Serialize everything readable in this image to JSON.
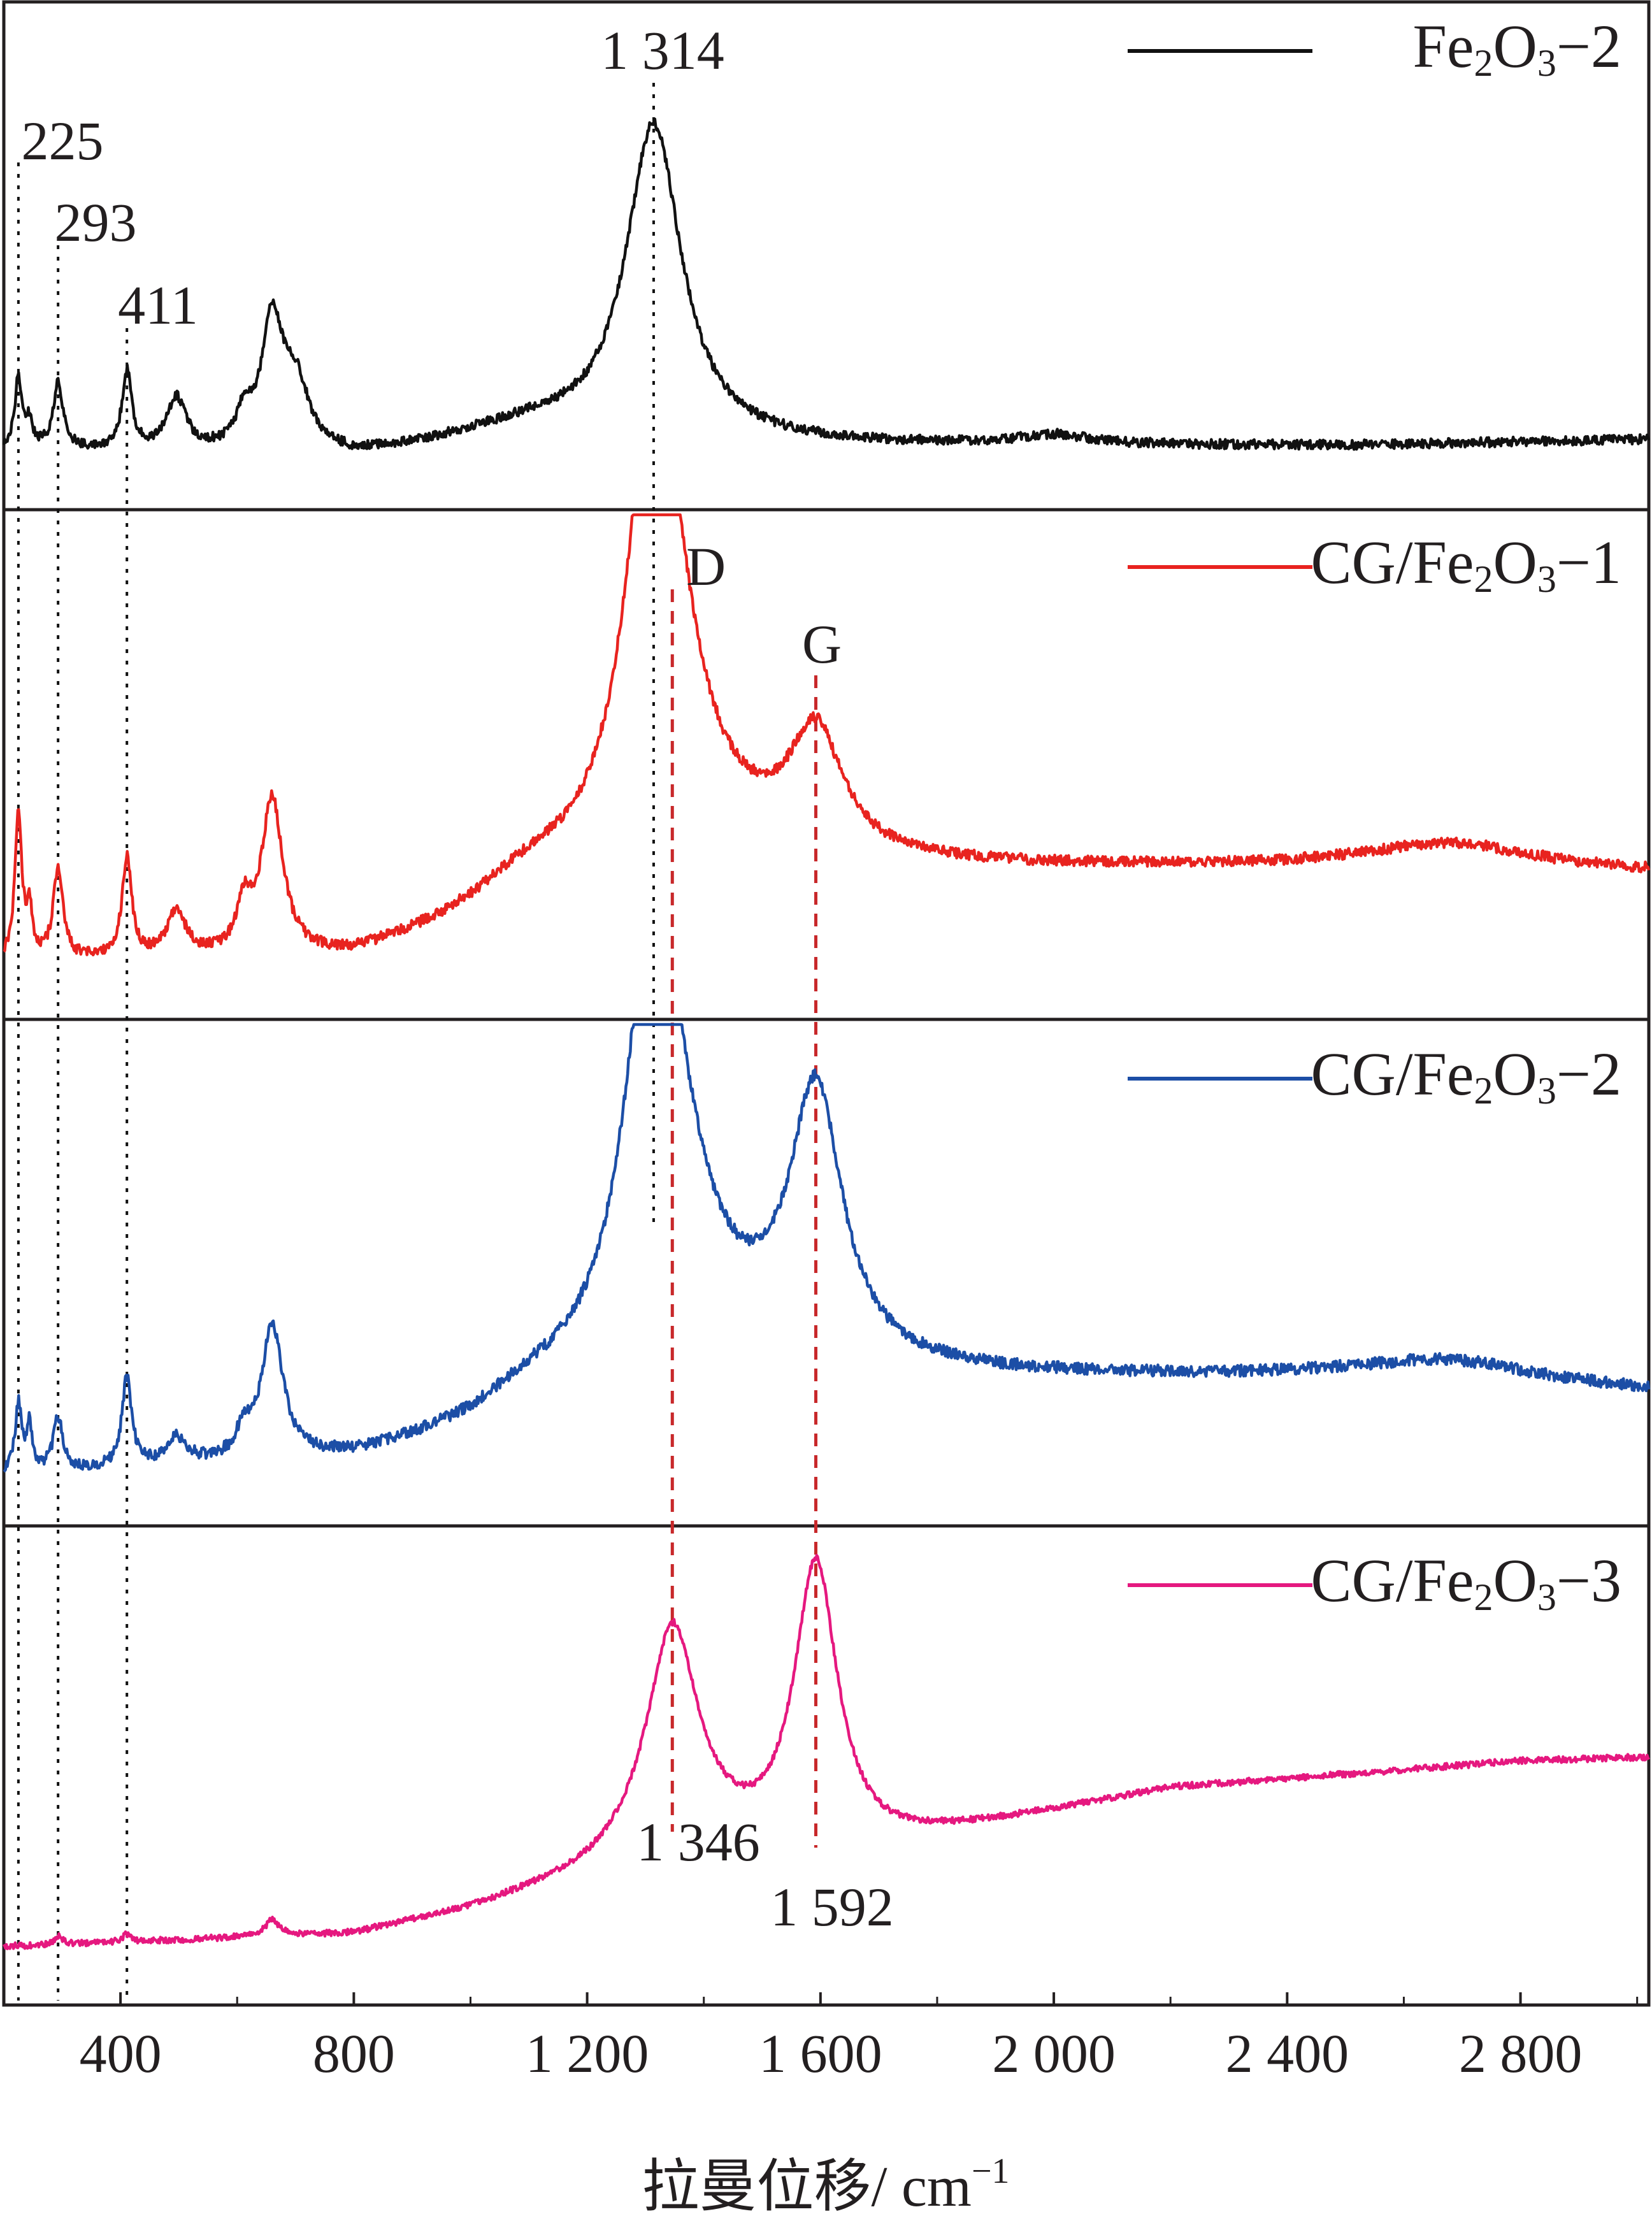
{
  "chart_data": {
    "type": "line",
    "xlabel": "拉曼位移/ cm",
    "xlabel_sup": "−1",
    "xlim": [
      200,
      3020
    ],
    "x_ticks": [
      400,
      800,
      1200,
      1600,
      2000,
      2400,
      2800
    ],
    "x_tick_labels": [
      "400",
      "800",
      "1 200",
      "1 600",
      "2 000",
      "2 400",
      "2 800"
    ],
    "ylabel": "",
    "y_axis": "stacked panels, no y ticks",
    "colors": {
      "Fe2O3-2": "#111111",
      "CG/Fe2O3-1": "#e8231f",
      "CG/Fe2O3-2": "#1c4ea6",
      "CG/Fe2O3-3": "#e5187f",
      "iron_oxide_markers": "#111111",
      "carbon_markers": "#c8282a"
    },
    "panels": [
      {
        "id": "Fe2O3-2",
        "legend": {
          "prefix": "Fe",
          "sub1": "2",
          "mid": "O",
          "sub2": "3",
          "suffix": "−2"
        },
        "peaks": [
          [
            225,
            0.22
          ],
          [
            244,
            0.08
          ],
          [
            293,
            0.2
          ],
          [
            411,
            0.24
          ],
          [
            496,
            0.16
          ],
          [
            612,
            0.1
          ],
          [
            660,
            0.4
          ],
          [
            700,
            0.2
          ],
          [
            1110,
            0.05
          ],
          [
            1314,
            1.0
          ],
          [
            2000,
            0.03
          ]
        ],
        "widths": [
          [
            225,
            7
          ],
          [
            244,
            6
          ],
          [
            293,
            10
          ],
          [
            411,
            10
          ],
          [
            496,
            20
          ],
          [
            612,
            15
          ],
          [
            660,
            22
          ],
          [
            700,
            28
          ],
          [
            1110,
            120
          ],
          [
            1314,
            58
          ],
          [
            2000,
            70
          ]
        ],
        "baseline": [
          [
            200,
            0.05
          ],
          [
            800,
            0.02
          ],
          [
            1000,
            0.06
          ],
          [
            1500,
            0.06
          ],
          [
            2500,
            0.06
          ],
          [
            3020,
            0.08
          ]
        ],
        "noise": 0.015
      },
      {
        "id": "CG/Fe2O3-1",
        "legend": {
          "prefix": "CG/Fe",
          "sub1": "2",
          "mid": "O",
          "sub2": "3",
          "suffix": "−1"
        },
        "peaks": [
          [
            225,
            0.33
          ],
          [
            244,
            0.1
          ],
          [
            293,
            0.2
          ],
          [
            411,
            0.22
          ],
          [
            496,
            0.1
          ],
          [
            612,
            0.1
          ],
          [
            660,
            0.35
          ],
          [
            1100,
            0.08
          ],
          [
            1314,
            0.95
          ],
          [
            1346,
            0.25
          ],
          [
            1592,
            0.27
          ],
          [
            2680,
            0.06
          ]
        ],
        "widths": [
          [
            225,
            7
          ],
          [
            244,
            6
          ],
          [
            293,
            10
          ],
          [
            411,
            10
          ],
          [
            496,
            20
          ],
          [
            612,
            15
          ],
          [
            660,
            22
          ],
          [
            1100,
            130
          ],
          [
            1314,
            55
          ],
          [
            1346,
            90
          ],
          [
            1592,
            55
          ],
          [
            2680,
            180
          ]
        ],
        "baseline": [
          [
            200,
            0.04
          ],
          [
            800,
            0.04
          ],
          [
            1000,
            0.1
          ],
          [
            1500,
            0.25
          ],
          [
            1700,
            0.25
          ],
          [
            2500,
            0.25
          ],
          [
            3020,
            0.24
          ]
        ],
        "noise": 0.012
      },
      {
        "id": "CG/Fe2O3-2",
        "legend": {
          "prefix": "CG/Fe",
          "sub1": "2",
          "mid": "O",
          "sub2": "3",
          "suffix": "−2"
        },
        "peaks": [
          [
            225,
            0.15
          ],
          [
            244,
            0.1
          ],
          [
            293,
            0.12
          ],
          [
            411,
            0.2
          ],
          [
            496,
            0.06
          ],
          [
            612,
            0.06
          ],
          [
            660,
            0.3
          ],
          [
            1100,
            0.06
          ],
          [
            1314,
            0.88
          ],
          [
            1346,
            0.3
          ],
          [
            1592,
            0.6
          ],
          [
            2680,
            0.05
          ]
        ],
        "widths": [
          [
            225,
            7
          ],
          [
            244,
            6
          ],
          [
            293,
            10
          ],
          [
            411,
            10
          ],
          [
            496,
            20
          ],
          [
            612,
            15
          ],
          [
            660,
            22
          ],
          [
            1100,
            130
          ],
          [
            1314,
            55
          ],
          [
            1346,
            100
          ],
          [
            1592,
            55
          ],
          [
            2680,
            180
          ]
        ],
        "baseline": [
          [
            200,
            0.03
          ],
          [
            800,
            0.06
          ],
          [
            1000,
            0.1
          ],
          [
            1500,
            0.25
          ],
          [
            1700,
            0.25
          ],
          [
            2500,
            0.25
          ],
          [
            3020,
            0.22
          ]
        ],
        "noise": 0.013
      },
      {
        "id": "CG/Fe2O3-3",
        "legend": {
          "prefix": "CG/Fe",
          "sub1": "2",
          "mid": "O",
          "sub2": "3",
          "suffix": "−3"
        },
        "peaks": [
          [
            293,
            0.02
          ],
          [
            411,
            0.02
          ],
          [
            660,
            0.04
          ],
          [
            1346,
            0.55
          ],
          [
            1592,
            0.72
          ]
        ],
        "widths": [
          [
            293,
            8
          ],
          [
            411,
            8
          ],
          [
            660,
            15
          ],
          [
            1346,
            55
          ],
          [
            1592,
            45
          ]
        ],
        "baseline": [
          [
            200,
            0.05
          ],
          [
            800,
            0.08
          ],
          [
            1000,
            0.14
          ],
          [
            1200,
            0.22
          ],
          [
            1350,
            0.3
          ],
          [
            1500,
            0.28
          ],
          [
            1700,
            0.3
          ],
          [
            2200,
            0.45
          ],
          [
            2800,
            0.52
          ],
          [
            3020,
            0.53
          ]
        ],
        "noise": 0.008
      }
    ],
    "iron_oxide_markers": [
      225,
      293,
      411
    ],
    "carbon_markers": [
      {
        "label": "D",
        "x": 1346
      },
      {
        "label": "G",
        "x": 1592
      }
    ],
    "annotations": {
      "peak_1314": "1 314",
      "peak_225": "225",
      "peak_293": "293",
      "peak_411": "411",
      "band_D": "D",
      "band_G": "G",
      "peak_1346": "1 346",
      "peak_1592": "1 592"
    }
  }
}
